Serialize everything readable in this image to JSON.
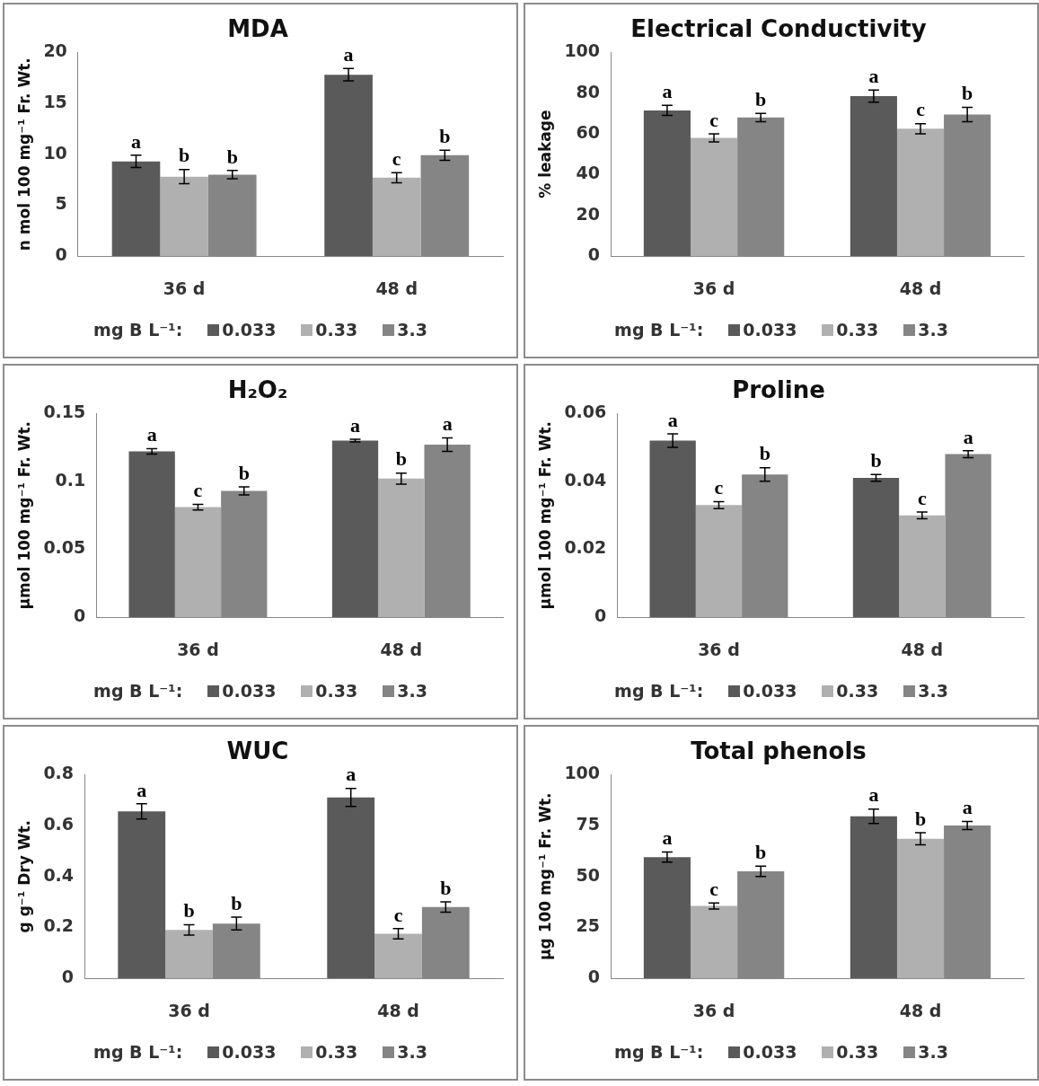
{
  "chart_data": [
    {
      "type": "bar",
      "title": "MDA",
      "ylabel": "n mol 100 mg⁻¹ Fr. Wt.",
      "legend_title": "mg B L⁻¹:",
      "legend": "bottom",
      "categories": [
        "36 d",
        "48 d"
      ],
      "ylim": [
        0,
        20
      ],
      "yticks": [
        0,
        5,
        10,
        15,
        20
      ],
      "series": [
        {
          "name": "0.033",
          "color": "#5a5a5a",
          "values": [
            9.3,
            17.8
          ],
          "errors": [
            0.6,
            0.6
          ],
          "value_labels": [
            "a",
            "a"
          ]
        },
        {
          "name": "0.33",
          "color": "#b0b0b0",
          "values": [
            7.8,
            7.7
          ],
          "errors": [
            0.7,
            0.5
          ],
          "value_labels": [
            "b",
            "c"
          ]
        },
        {
          "name": "3.3",
          "color": "#858585",
          "values": [
            8.0,
            9.9
          ],
          "errors": [
            0.4,
            0.5
          ],
          "value_labels": [
            "b",
            "b"
          ]
        }
      ]
    },
    {
      "type": "bar",
      "title": "Electrical Conductivity",
      "ylabel": "% leakage",
      "legend_title": "mg B L⁻¹:",
      "legend": "bottom",
      "categories": [
        "36 d",
        "48 d"
      ],
      "ylim": [
        0,
        100
      ],
      "yticks": [
        0,
        20,
        40,
        60,
        80,
        100
      ],
      "series": [
        {
          "name": "0.033",
          "color": "#5a5a5a",
          "values": [
            71.5,
            78.5
          ],
          "errors": [
            2.5,
            3
          ],
          "value_labels": [
            "a",
            "a"
          ]
        },
        {
          "name": "0.33",
          "color": "#b0b0b0",
          "values": [
            58,
            62.5
          ],
          "errors": [
            2,
            2.5
          ],
          "value_labels": [
            "c",
            "c"
          ]
        },
        {
          "name": "3.3",
          "color": "#858585",
          "values": [
            68,
            69.5
          ],
          "errors": [
            2,
            3.5
          ],
          "value_labels": [
            "b",
            "b"
          ]
        }
      ]
    },
    {
      "type": "bar",
      "title": "H₂O₂",
      "ylabel": "µmol 100 mg⁻¹ Fr. Wt.",
      "legend_title": "mg B L⁻¹:",
      "legend": "bottom",
      "categories": [
        "36 d",
        "48 d"
      ],
      "ylim": [
        0,
        0.15
      ],
      "yticks": [
        0,
        0.05,
        0.1,
        0.15
      ],
      "series": [
        {
          "name": "0.033",
          "color": "#5a5a5a",
          "values": [
            0.122,
            0.13
          ],
          "errors": [
            0.002,
            0.001
          ],
          "value_labels": [
            "a",
            "a"
          ]
        },
        {
          "name": "0.33",
          "color": "#b0b0b0",
          "values": [
            0.081,
            0.102
          ],
          "errors": [
            0.002,
            0.004
          ],
          "value_labels": [
            "c",
            "b"
          ]
        },
        {
          "name": "3.3",
          "color": "#858585",
          "values": [
            0.093,
            0.127
          ],
          "errors": [
            0.003,
            0.005
          ],
          "value_labels": [
            "b",
            "a"
          ]
        }
      ]
    },
    {
      "type": "bar",
      "title": "Proline",
      "ylabel": "µmol 100 mg⁻¹ Fr. Wt.",
      "legend_title": "mg B L⁻¹:",
      "legend": "bottom",
      "categories": [
        "36 d",
        "48 d"
      ],
      "ylim": [
        0,
        0.06
      ],
      "yticks": [
        0,
        0.02,
        0.04,
        0.06
      ],
      "series": [
        {
          "name": "0.033",
          "color": "#5a5a5a",
          "values": [
            0.052,
            0.041
          ],
          "errors": [
            0.002,
            0.001
          ],
          "value_labels": [
            "a",
            "b"
          ]
        },
        {
          "name": "0.33",
          "color": "#b0b0b0",
          "values": [
            0.033,
            0.03
          ],
          "errors": [
            0.001,
            0.001
          ],
          "value_labels": [
            "c",
            "c"
          ]
        },
        {
          "name": "3.3",
          "color": "#858585",
          "values": [
            0.042,
            0.048
          ],
          "errors": [
            0.002,
            0.001
          ],
          "value_labels": [
            "b",
            "a"
          ]
        }
      ]
    },
    {
      "type": "bar",
      "title": "WUC",
      "ylabel": "g g⁻¹ Dry Wt.",
      "legend_title": "mg B L⁻¹:",
      "legend": "bottom",
      "categories": [
        "36 d",
        "48 d"
      ],
      "ylim": [
        0,
        0.8
      ],
      "yticks": [
        0,
        0.2,
        0.4,
        0.6,
        0.8
      ],
      "series": [
        {
          "name": "0.033",
          "color": "#5a5a5a",
          "values": [
            0.655,
            0.71
          ],
          "errors": [
            0.03,
            0.035
          ],
          "value_labels": [
            "a",
            "a"
          ]
        },
        {
          "name": "0.33",
          "color": "#b0b0b0",
          "values": [
            0.19,
            0.175
          ],
          "errors": [
            0.02,
            0.02
          ],
          "value_labels": [
            "b",
            "c"
          ]
        },
        {
          "name": "3.3",
          "color": "#858585",
          "values": [
            0.215,
            0.28
          ],
          "errors": [
            0.025,
            0.02
          ],
          "value_labels": [
            "b",
            "b"
          ]
        }
      ]
    },
    {
      "type": "bar",
      "title": "Total phenols",
      "ylabel": "µg 100 mg⁻¹ Fr. Wt.",
      "legend_title": "mg B L⁻¹:",
      "legend": "bottom",
      "categories": [
        "36 d",
        "48 d"
      ],
      "ylim": [
        0,
        100
      ],
      "yticks": [
        0,
        25,
        50,
        75,
        100
      ],
      "series": [
        {
          "name": "0.033",
          "color": "#5a5a5a",
          "values": [
            59.5,
            79.5
          ],
          "errors": [
            2.5,
            3.5
          ],
          "value_labels": [
            "a",
            "a"
          ]
        },
        {
          "name": "0.33",
          "color": "#b0b0b0",
          "values": [
            35.5,
            68.5
          ],
          "errors": [
            1.5,
            3
          ],
          "value_labels": [
            "c",
            "b"
          ]
        },
        {
          "name": "3.3",
          "color": "#858585",
          "values": [
            52.5,
            75
          ],
          "errors": [
            2.5,
            2
          ],
          "value_labels": [
            "b",
            "a"
          ]
        }
      ]
    }
  ]
}
